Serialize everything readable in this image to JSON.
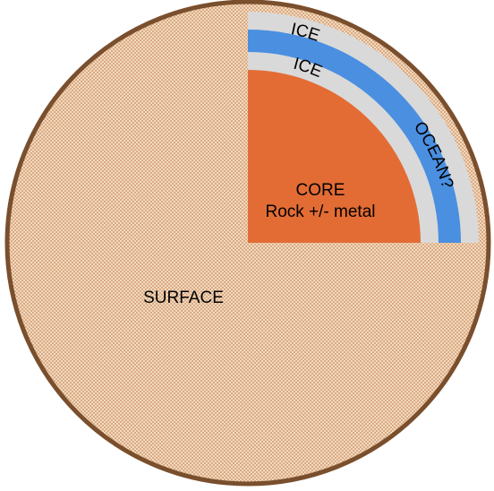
{
  "diagram": {
    "labels": {
      "outer_ice": "ICE",
      "inner_ice": "ICE",
      "ocean": "OCEAN?",
      "core_title": "CORE",
      "core_subtitle": "Rock +/- metal",
      "surface": "SURFACE"
    },
    "colors": {
      "surface_fill": "#f2d9bf",
      "surface_dots": "#c98a5a",
      "outline": "#7a4f2d",
      "ice": "#d9d9d9",
      "ocean": "#4a8fe0",
      "core": "#e36c35"
    }
  }
}
